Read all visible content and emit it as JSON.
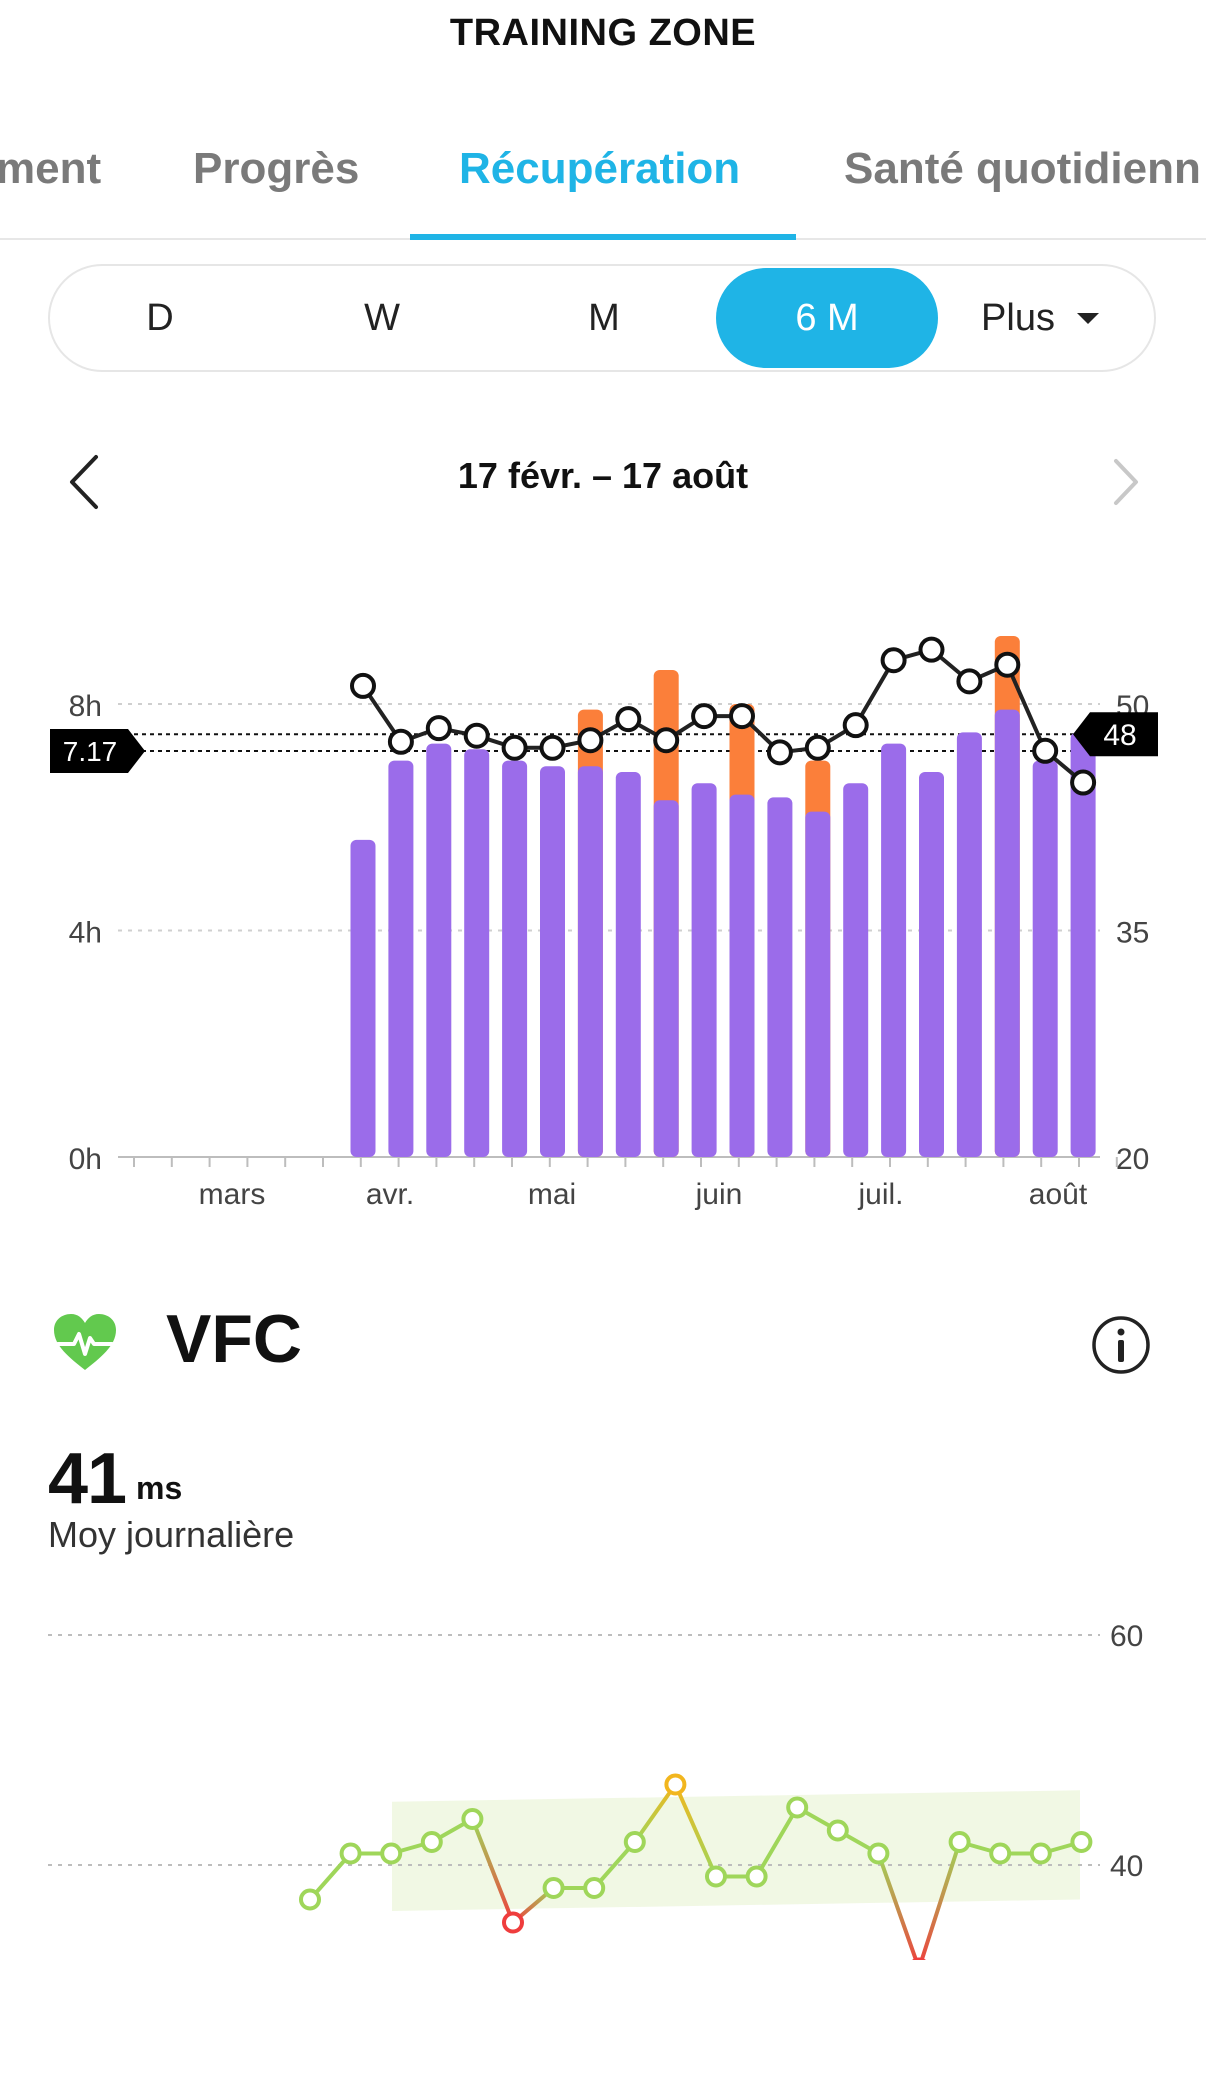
{
  "header": {
    "title": "TRAINING ZONE"
  },
  "tabs": [
    {
      "label": "ment",
      "active": false
    },
    {
      "label": "Progrès",
      "active": false
    },
    {
      "label": "Récupération",
      "active": true
    },
    {
      "label": "Santé quotidienn",
      "active": false
    }
  ],
  "period_selector": {
    "options": [
      "D",
      "W",
      "M",
      "6 M",
      "Plus"
    ],
    "selected": "6 M"
  },
  "date_range": {
    "label": "17 févr. – 17 août",
    "prev_icon": "chevron-left-icon",
    "next_icon": "chevron-right-icon"
  },
  "colors": {
    "accent": "#1fb4e6",
    "sleep": "#9b6cea",
    "extra": "#fb7f3a",
    "hrv_good": "#9fd65a",
    "hrv_warn": "#f2b61e",
    "hrv_bad": "#ef3d3d"
  },
  "chart_data": [
    {
      "type": "bar",
      "y_left": {
        "ticks": [
          "0h",
          "4h",
          "8h"
        ],
        "ylim": [
          0,
          8
        ]
      },
      "y_right": {
        "ticks": [
          "20",
          "35",
          "50"
        ],
        "ylim": [
          20,
          50
        ]
      },
      "x_labels": [
        "mars",
        "avr.",
        "mai",
        "juin",
        "juil.",
        "août"
      ],
      "reference_left": {
        "label": "7.17",
        "value": 7.17
      },
      "reference_right": {
        "label": "48",
        "value": 48
      },
      "series": [
        {
          "values": [
            5.6,
            7.0,
            7.3,
            7.2,
            7.0,
            6.9,
            6.9,
            6.8,
            6.3,
            6.6,
            6.4,
            6.35,
            6.1,
            6.6,
            7.3,
            6.8,
            7.5,
            7.9,
            7.0,
            7.5
          ]
        },
        {
          "values": [
            0,
            0,
            0,
            0,
            0,
            0,
            1.0,
            0,
            2.3,
            0,
            1.6,
            0,
            0.9,
            0,
            0,
            0,
            0,
            1.3,
            0,
            0
          ]
        },
        {
          "values": [
            51.2,
            47.5,
            48.4,
            47.9,
            47.1,
            47.1,
            47.6,
            49.0,
            47.6,
            49.2,
            49.2,
            46.8,
            47.1,
            48.6,
            52.9,
            53.6,
            51.5,
            52.6,
            46.9,
            44.8
          ]
        }
      ]
    },
    {
      "type": "line",
      "y_ticks": [
        "40",
        "60"
      ],
      "ylim": [
        28,
        70
      ],
      "series": [
        {
          "values": [
            37.0,
            41.0,
            41.0,
            42.0,
            44.0,
            35.0,
            38.0,
            38.0,
            42.0,
            47.0,
            39.0,
            39.0,
            45.0,
            43.0,
            41.0,
            31.0,
            42.0,
            41.0,
            41.0,
            42.0
          ],
          "status": [
            "good",
            "good",
            "good",
            "good",
            "good",
            "bad",
            "good",
            "good",
            "good",
            "warn",
            "good",
            "good",
            "good",
            "good",
            "good",
            "bad",
            "good",
            "good",
            "good",
            "good"
          ]
        }
      ]
    }
  ],
  "vfc": {
    "heart_icon": "heart-pulse-icon",
    "title": "VFC",
    "info_icon": "info-icon",
    "value": "41",
    "unit": "ms",
    "subtitle": "Moy journalière"
  }
}
